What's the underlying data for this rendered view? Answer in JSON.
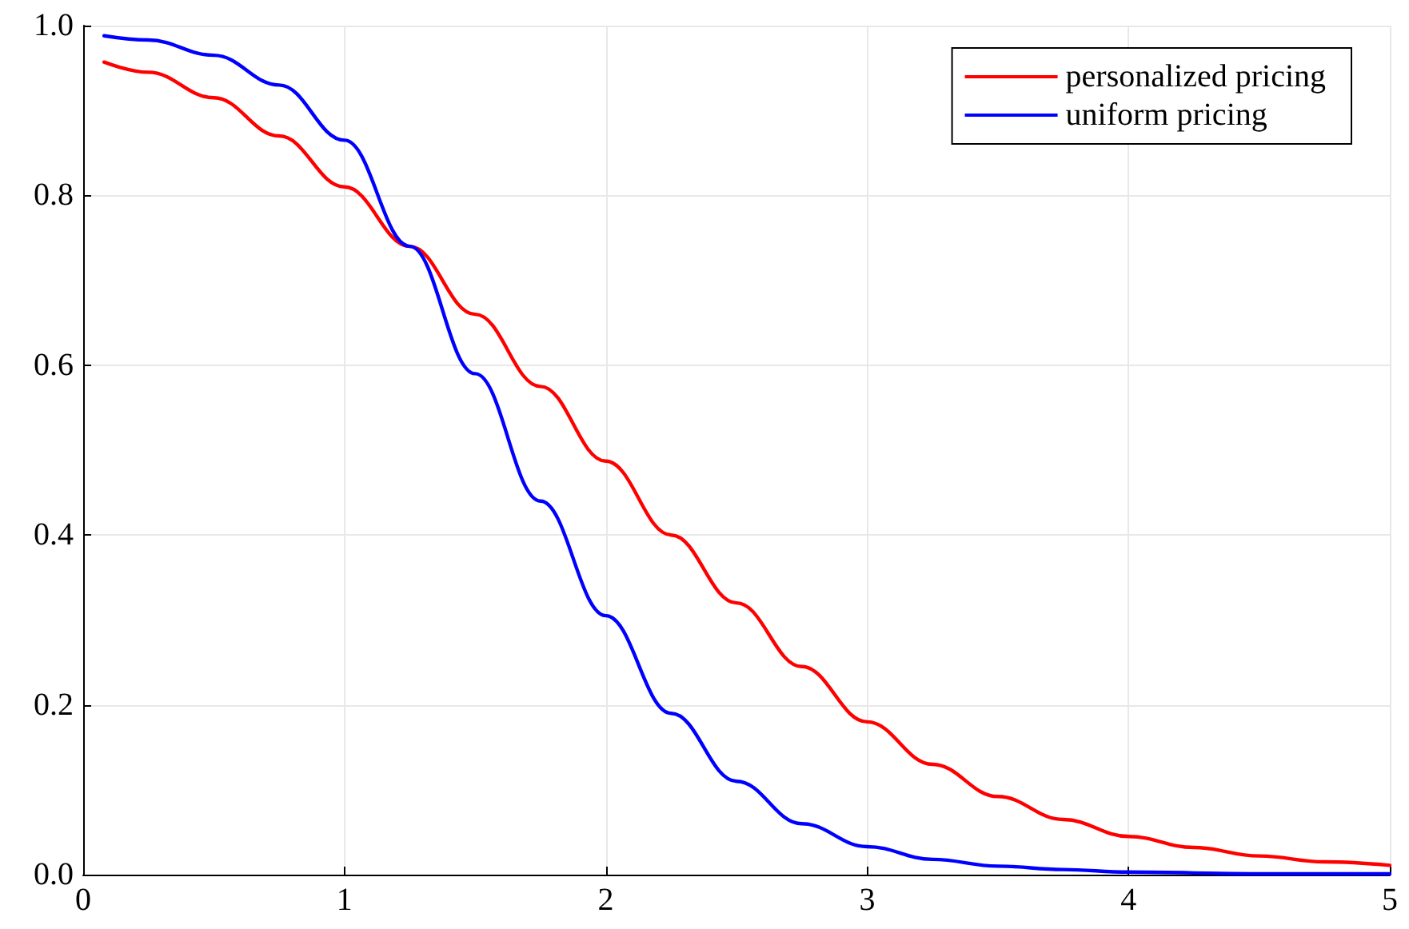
{
  "chart_data": {
    "type": "line",
    "xlim": [
      0,
      5
    ],
    "xticks": [
      0,
      1,
      2,
      3,
      4,
      5
    ],
    "ylim": [
      0,
      1
    ],
    "yticks": [
      {
        "value": 0,
        "label": "0.0"
      },
      {
        "value": 0.2,
        "label": "0.2"
      },
      {
        "value": 0.4,
        "label": "0.4"
      },
      {
        "value": 0.6,
        "label": "0.6"
      },
      {
        "value": 0.8,
        "label": "0.8"
      },
      {
        "value": 1,
        "label": "1.0"
      }
    ],
    "grid": true,
    "legend": "top right",
    "marker": "none",
    "line_style": "solid",
    "series": [
      {
        "name": "personalized pricing",
        "color": "#ff0000",
        "x": [
          0.08,
          0.25,
          0.5,
          0.75,
          1,
          1.25,
          1.5,
          1.75,
          2,
          2.25,
          2.5,
          2.75,
          3,
          3.25,
          3.5,
          3.75,
          4,
          4.25,
          4.5,
          4.75,
          5
        ],
        "values": [
          0.957,
          0.945,
          0.915,
          0.87,
          0.81,
          0.74,
          0.66,
          0.575,
          0.487,
          0.4,
          0.32,
          0.245,
          0.18,
          0.13,
          0.092,
          0.065,
          0.045,
          0.032,
          0.022,
          0.015,
          0.011
        ]
      },
      {
        "name": "uniform pricing",
        "color": "#0000ff",
        "x": [
          0.08,
          0.25,
          0.5,
          0.75,
          1,
          1.25,
          1.5,
          1.75,
          2,
          2.25,
          2.5,
          2.75,
          3,
          3.25,
          3.5,
          3.75,
          4,
          4.5,
          5
        ],
        "values": [
          0.988,
          0.983,
          0.965,
          0.93,
          0.865,
          0.74,
          0.59,
          0.44,
          0.305,
          0.19,
          0.11,
          0.06,
          0.033,
          0.018,
          0.01,
          0.006,
          0.003,
          0.001,
          0.001
        ]
      }
    ]
  }
}
